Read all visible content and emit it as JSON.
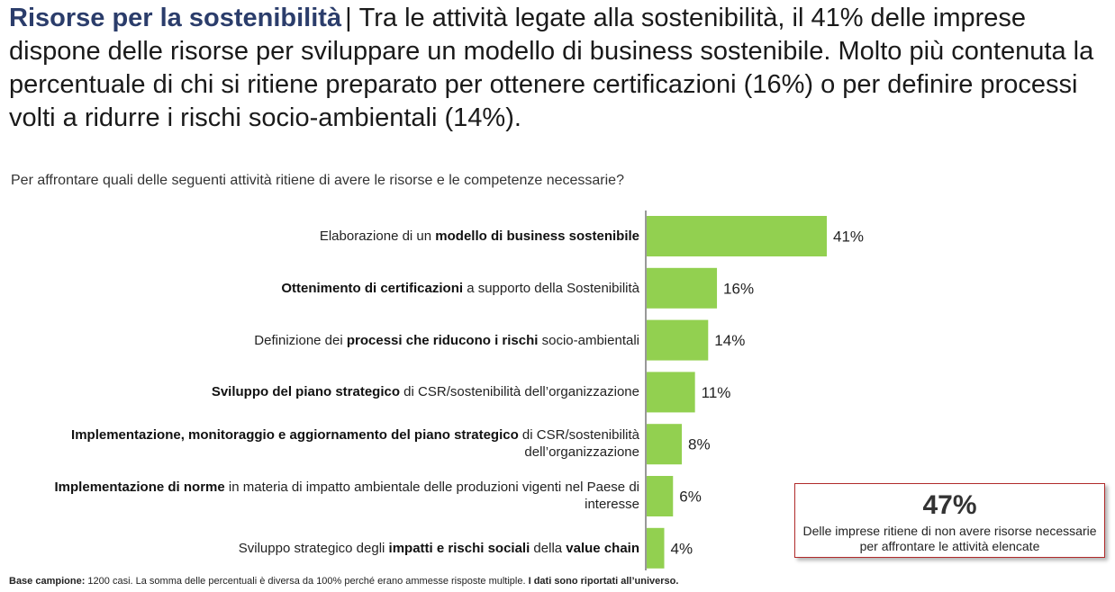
{
  "header": {
    "title_bold": "Risorse per la sostenibilità",
    "separator": "|",
    "title_text": "Tra le attività legate alla sostenibilità, il 41% delle imprese dispone delle risorse per sviluppare un modello di business sostenibile. Molto più contenuta la percentuale di chi si ritiene preparato per ottenere certificazioni (16%) o per definire processi volti a ridurre i rischi socio-ambientali (14%).",
    "question": "Per affrontare quali delle seguenti attività ritiene di avere le risorse e le competenze necessarie?"
  },
  "chart_data": {
    "type": "bar",
    "orientation": "horizontal",
    "title": "Per affrontare quali delle seguenti attività ritiene di avere le risorse e le competenze necessarie?",
    "categories": [
      "Elaborazione di un modello di business sostenibile",
      "Ottenimento di certificazioni a supporto della Sostenibilità",
      "Definizione dei processi che riducono i rischi socio-ambientali",
      "Sviluppo del piano strategico di CSR/sostenibilità dell’organizzazione",
      "Implementazione, monitoraggio e aggiornamento del piano strategico di CSR/sostenibilità dell’organizzazione",
      "Implementazione di norme in materia di impatto ambientale delle produzioni vigenti nel Paese di interesse",
      "Sviluppo strategico degli impatti e rischi sociali della value chain"
    ],
    "values": [
      41,
      16,
      14,
      11,
      8,
      6,
      4
    ],
    "value_labels": [
      "41%",
      "16%",
      "14%",
      "11%",
      "8%",
      "6%",
      "4%"
    ],
    "unit": "%",
    "xlim": [
      0,
      100
    ],
    "grid": false,
    "bar_color": "#92d050"
  },
  "labels": [
    {
      "pre": "Elaborazione di un ",
      "bold": "modello di business sostenibile",
      "post": ""
    },
    {
      "pre": "",
      "bold": "Ottenimento di certificazioni",
      "post": " a supporto della Sostenibilità"
    },
    {
      "pre": "Definizione dei ",
      "bold": "processi che riducono i rischi",
      "post": " socio-ambientali"
    },
    {
      "pre": "",
      "bold": "Sviluppo del piano strategico",
      "post": " di CSR/sostenibilità dell’organizzazione"
    },
    {
      "pre": "",
      "bold": "Implementazione, monitoraggio e aggiornamento del piano strategico",
      "post": " di CSR/sostenibilità dell’organizzazione"
    },
    {
      "pre": "",
      "bold": "Implementazione di norme",
      "post": " in materia di impatto ambientale delle produzioni vigenti nel Paese di interesse"
    },
    {
      "pre": "Sviluppo strategico degli ",
      "bold": "impatti e rischi sociali",
      "post": " della ",
      "bold2": "value chain"
    }
  ],
  "callout": {
    "value": "47%",
    "text": "Delle imprese ritiene di non avere risorse necessarie per affrontare le attività elencate"
  },
  "footer": {
    "label": "Base campione:",
    "text": " 1200 casi. La somma delle percentuali è diversa da 100% perché erano ammesse risposte multiple. ",
    "bold_end": "I dati sono riportati all’universo."
  },
  "colors": {
    "title_accent": "#2b3d6b",
    "bar": "#92d050",
    "callout_border": "#b02a2a"
  }
}
